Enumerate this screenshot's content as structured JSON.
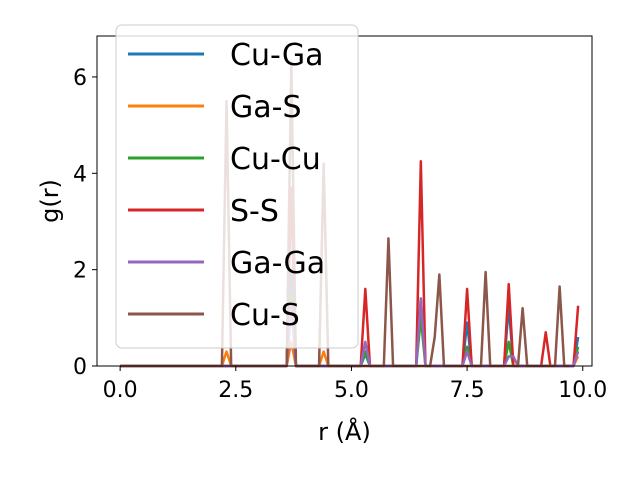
{
  "chart_data": {
    "type": "line",
    "title": "",
    "xlabel": "r (Å)",
    "ylabel": "g(r)",
    "xlim": [
      -0.5,
      10.2
    ],
    "ylim": [
      0,
      6.85
    ],
    "x_ticks": [
      0.0,
      2.5,
      5.0,
      7.5,
      10.0
    ],
    "x_tick_labels": [
      "0.0",
      "2.5",
      "5.0",
      "7.5",
      "10.0"
    ],
    "y_ticks": [
      0,
      2,
      4,
      6
    ],
    "y_tick_labels": [
      "0",
      "2",
      "4",
      "6"
    ],
    "legend_position": "top-left",
    "grid": false,
    "series": [
      {
        "name": "Cu-Ga",
        "color": "#1f77b4",
        "points": [
          [
            0,
            0
          ],
          [
            3.6,
            0
          ],
          [
            3.7,
            2.0
          ],
          [
            3.8,
            0
          ],
          [
            5.2,
            0
          ],
          [
            5.3,
            0.25
          ],
          [
            5.4,
            0
          ],
          [
            6.4,
            0
          ],
          [
            6.5,
            1.4
          ],
          [
            6.6,
            0
          ],
          [
            7.4,
            0
          ],
          [
            7.5,
            0.9
          ],
          [
            7.6,
            0
          ],
          [
            8.3,
            0
          ],
          [
            8.4,
            1.25
          ],
          [
            8.5,
            0
          ],
          [
            9.8,
            0
          ],
          [
            9.9,
            0.6
          ]
        ]
      },
      {
        "name": "Ga-S",
        "color": "#ff7f0e",
        "points": [
          [
            0,
            0
          ],
          [
            2.2,
            0
          ],
          [
            2.3,
            0.3
          ],
          [
            2.4,
            0
          ],
          [
            3.6,
            0
          ],
          [
            3.7,
            0.5
          ],
          [
            3.8,
            0
          ],
          [
            4.3,
            0
          ],
          [
            4.4,
            0.3
          ],
          [
            4.5,
            0
          ],
          [
            9.8,
            0
          ],
          [
            9.9,
            0.2
          ]
        ]
      },
      {
        "name": "Cu-Cu",
        "color": "#2ca02c",
        "points": [
          [
            0,
            0
          ],
          [
            3.6,
            0
          ],
          [
            3.7,
            1.5
          ],
          [
            3.8,
            0
          ],
          [
            5.2,
            0
          ],
          [
            5.3,
            0.3
          ],
          [
            5.4,
            0
          ],
          [
            6.4,
            0
          ],
          [
            6.5,
            1.0
          ],
          [
            6.6,
            0
          ],
          [
            7.4,
            0
          ],
          [
            7.5,
            0.4
          ],
          [
            7.6,
            0
          ],
          [
            8.3,
            0
          ],
          [
            8.4,
            0.5
          ],
          [
            8.5,
            0
          ],
          [
            9.8,
            0
          ],
          [
            9.9,
            0.4
          ]
        ]
      },
      {
        "name": "S-S",
        "color": "#d62728",
        "points": [
          [
            0,
            0
          ],
          [
            3.6,
            0
          ],
          [
            3.7,
            3.7
          ],
          [
            3.8,
            0
          ],
          [
            5.2,
            0
          ],
          [
            5.3,
            1.6
          ],
          [
            5.4,
            0
          ],
          [
            6.4,
            0
          ],
          [
            6.5,
            4.25
          ],
          [
            6.6,
            0
          ],
          [
            7.4,
            0
          ],
          [
            7.5,
            1.6
          ],
          [
            7.6,
            0
          ],
          [
            8.3,
            0
          ],
          [
            8.4,
            1.7
          ],
          [
            8.5,
            0
          ],
          [
            9.1,
            0
          ],
          [
            9.2,
            0.7
          ],
          [
            9.3,
            0
          ],
          [
            9.8,
            0
          ],
          [
            9.9,
            1.25
          ]
        ]
      },
      {
        "name": "Ga-Ga",
        "color": "#9467bd",
        "points": [
          [
            0,
            0
          ],
          [
            3.6,
            0
          ],
          [
            3.7,
            1.3
          ],
          [
            3.8,
            0
          ],
          [
            5.2,
            0
          ],
          [
            5.3,
            0.5
          ],
          [
            5.4,
            0
          ],
          [
            6.4,
            0
          ],
          [
            6.5,
            1.4
          ],
          [
            6.6,
            0
          ],
          [
            7.4,
            0
          ],
          [
            7.5,
            0.3
          ],
          [
            7.6,
            0
          ],
          [
            8.3,
            0
          ],
          [
            8.4,
            0.2
          ],
          [
            8.5,
            0.2
          ],
          [
            8.6,
            0
          ],
          [
            9.8,
            0
          ],
          [
            9.9,
            0.3
          ]
        ]
      },
      {
        "name": "Cu-S",
        "color": "#8c564b",
        "points": [
          [
            0,
            0
          ],
          [
            2.2,
            0
          ],
          [
            2.3,
            5.5
          ],
          [
            2.4,
            0
          ],
          [
            3.6,
            0
          ],
          [
            3.7,
            6.3
          ],
          [
            3.8,
            0
          ],
          [
            4.3,
            0
          ],
          [
            4.4,
            4.2
          ],
          [
            4.5,
            0
          ],
          [
            5.7,
            0
          ],
          [
            5.8,
            2.65
          ],
          [
            5.9,
            0
          ],
          [
            6.7,
            0
          ],
          [
            6.8,
            0.6
          ],
          [
            6.9,
            1.9
          ],
          [
            7.0,
            0
          ],
          [
            7.8,
            0
          ],
          [
            7.9,
            1.95
          ],
          [
            8.0,
            0
          ],
          [
            8.6,
            0
          ],
          [
            8.7,
            1.2
          ],
          [
            8.8,
            0
          ],
          [
            9.4,
            0
          ],
          [
            9.5,
            1.65
          ],
          [
            9.6,
            0
          ],
          [
            9.7,
            0
          ]
        ]
      }
    ]
  }
}
